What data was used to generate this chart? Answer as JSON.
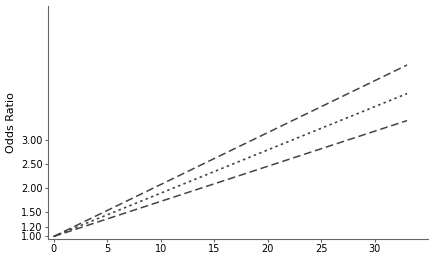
{
  "title": "",
  "xlabel": "",
  "ylabel": "Odds Ratio",
  "xlim": [
    -0.5,
    35
  ],
  "ylim": [
    0.95,
    5.8
  ],
  "x_ticks": [
    0,
    5,
    10,
    15,
    20,
    25,
    30
  ],
  "y_ticks": [
    1.0,
    1.2,
    1.5,
    2.0,
    2.5,
    3.0
  ],
  "x_start": 0,
  "x_end": 33,
  "line_color": "#444444",
  "bg_color": "#ffffff",
  "lines": [
    {
      "slope": 0.108,
      "intercept": 1.0,
      "style": "dashed",
      "lw": 1.1
    },
    {
      "slope": 0.09,
      "intercept": 1.0,
      "style": "dotted",
      "lw": 1.2
    },
    {
      "slope": 0.073,
      "intercept": 1.0,
      "style": "dashed",
      "lw": 1.1
    }
  ]
}
